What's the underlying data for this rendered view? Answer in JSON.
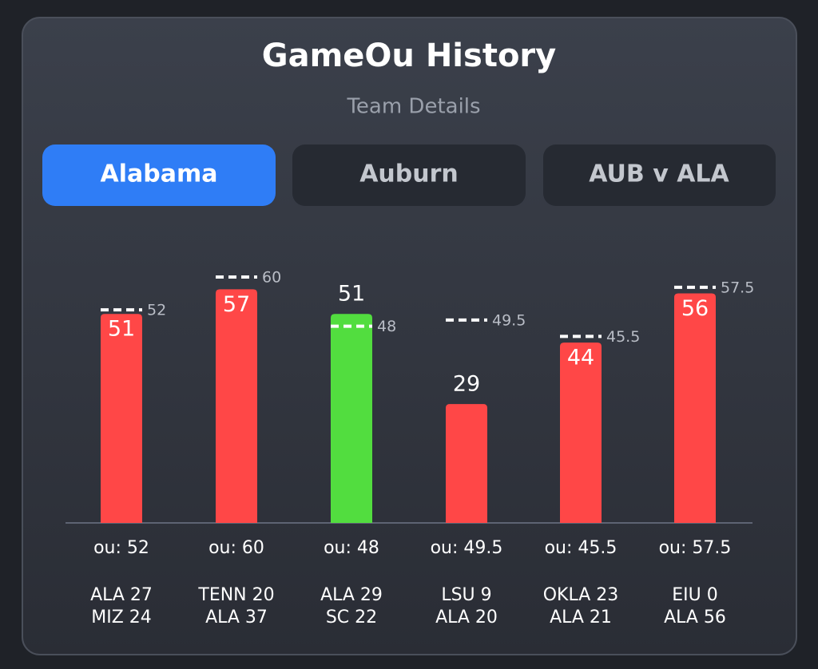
{
  "header": {
    "title": "GameOu History",
    "subtitle": "Team Details"
  },
  "tabs": [
    "Alabama",
    "Auburn",
    "AUB v ALA"
  ],
  "chart_data": {
    "type": "bar",
    "categories": [
      "ou: 52",
      "ou: 60",
      "ou: 48",
      "ou: 49.5",
      "ou: 45.5",
      "ou: 57.5"
    ],
    "values": [
      51,
      57,
      51,
      29,
      44,
      56
    ],
    "colors": [
      "#ff4747",
      "#ff4747",
      "#52dd3f",
      "#ff4747",
      "#ff4747",
      "#ff4747"
    ],
    "ou_values": [
      52,
      60,
      48,
      49.5,
      45.5,
      57.5
    ],
    "games": [
      [
        "ALA 27",
        "MIZ 24"
      ],
      [
        "TENN 20",
        "ALA 37"
      ],
      [
        "ALA 29",
        "SC 22"
      ],
      [
        "LSU 9",
        "ALA 20"
      ],
      [
        "OKLA 23",
        "ALA 21"
      ],
      [
        "EIU 0",
        "ALA 56"
      ]
    ],
    "ylim": [
      0,
      60
    ]
  }
}
